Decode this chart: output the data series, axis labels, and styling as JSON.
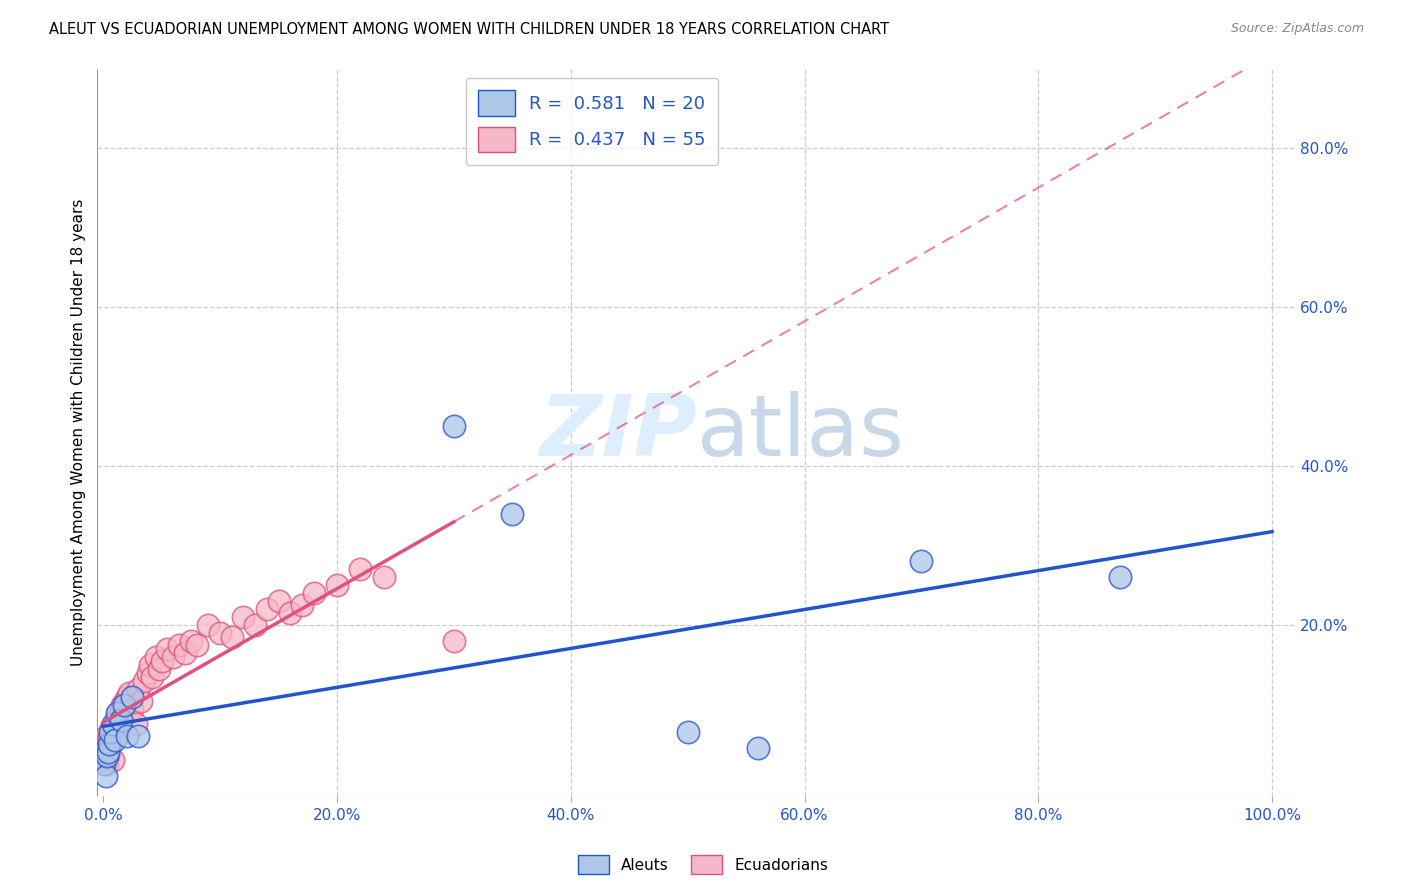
{
  "title": "ALEUT VS ECUADORIAN UNEMPLOYMENT AMONG WOMEN WITH CHILDREN UNDER 18 YEARS CORRELATION CHART",
  "source": "Source: ZipAtlas.com",
  "ylabel_label": "Unemployment Among Women with Children Under 18 years",
  "aleut_R": 0.581,
  "aleut_N": 20,
  "ecuadorian_R": 0.437,
  "ecuadorian_N": 55,
  "aleut_color": "#aec6e8",
  "aleut_line_color": "#2255cc",
  "ecuadorian_color": "#f5b8c8",
  "ecuadorian_line_color": "#e05080",
  "watermark_color": "#ddeeff",
  "aleut_x": [
    0.001,
    0.002,
    0.003,
    0.004,
    0.005,
    0.006,
    0.008,
    0.01,
    0.012,
    0.015,
    0.018,
    0.02,
    0.025,
    0.03,
    0.3,
    0.35,
    0.5,
    0.56,
    0.7,
    0.87
  ],
  "aleut_y": [
    0.025,
    0.01,
    0.035,
    0.04,
    0.05,
    0.065,
    0.075,
    0.055,
    0.09,
    0.08,
    0.1,
    0.06,
    0.11,
    0.06,
    0.45,
    0.34,
    0.065,
    0.045,
    0.28,
    0.26
  ],
  "ecuadorian_x": [
    0.001,
    0.001,
    0.002,
    0.002,
    0.003,
    0.003,
    0.004,
    0.004,
    0.005,
    0.005,
    0.006,
    0.007,
    0.008,
    0.009,
    0.01,
    0.011,
    0.012,
    0.013,
    0.015,
    0.016,
    0.018,
    0.019,
    0.02,
    0.022,
    0.025,
    0.028,
    0.03,
    0.032,
    0.035,
    0.038,
    0.04,
    0.042,
    0.045,
    0.048,
    0.05,
    0.055,
    0.06,
    0.065,
    0.07,
    0.075,
    0.08,
    0.09,
    0.1,
    0.11,
    0.12,
    0.13,
    0.14,
    0.15,
    0.16,
    0.17,
    0.18,
    0.2,
    0.22,
    0.24,
    0.3
  ],
  "ecuadorian_y": [
    0.03,
    0.05,
    0.04,
    0.06,
    0.025,
    0.045,
    0.035,
    0.055,
    0.04,
    0.06,
    0.05,
    0.07,
    0.03,
    0.065,
    0.075,
    0.08,
    0.06,
    0.09,
    0.095,
    0.1,
    0.085,
    0.105,
    0.11,
    0.115,
    0.095,
    0.075,
    0.12,
    0.105,
    0.13,
    0.14,
    0.15,
    0.135,
    0.16,
    0.145,
    0.155,
    0.17,
    0.16,
    0.175,
    0.165,
    0.18,
    0.175,
    0.2,
    0.19,
    0.185,
    0.21,
    0.2,
    0.22,
    0.23,
    0.215,
    0.225,
    0.24,
    0.25,
    0.27,
    0.26,
    0.18
  ],
  "xlim": [
    -0.005,
    1.02
  ],
  "ylim": [
    -0.015,
    0.9
  ],
  "x_ticks": [
    0.0,
    0.2,
    0.4,
    0.6,
    0.8,
    1.0
  ],
  "x_tick_labels": [
    "0.0%",
    "20.0%",
    "40.0%",
    "60.0%",
    "80.0%",
    "100.0%"
  ],
  "y_ticks": [
    0.2,
    0.4,
    0.6,
    0.8
  ],
  "y_tick_labels": [
    "20.0%",
    "40.0%",
    "60.0%",
    "80.0%"
  ]
}
